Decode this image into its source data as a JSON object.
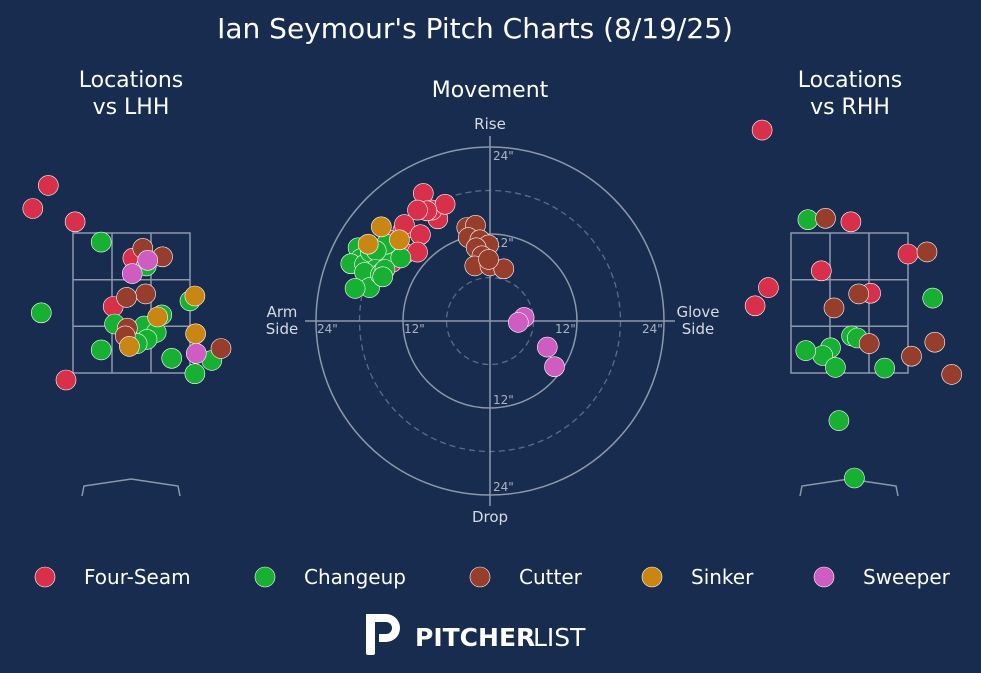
{
  "title": "Ian Seymour's Pitch Charts (8/19/25)",
  "panels": {
    "lhh_title_1": "Locations",
    "lhh_title_2": "vs LHH",
    "movement_title": "Movement",
    "rhh_title_1": "Locations",
    "rhh_title_2": "vs RHH"
  },
  "movement_axes": {
    "top": "Rise",
    "bottom": "Drop",
    "left_1": "Arm",
    "left_2": "Side",
    "right_1": "Glove",
    "right_2": "Side",
    "ring_labels": [
      "12\"",
      "24\""
    ]
  },
  "brand": {
    "bold": "PITCHER",
    "light": "LIST"
  },
  "colors": {
    "background": "#172c4e",
    "Four-Seam": "#d8304a",
    "Changeup": "#18b033",
    "Cutter": "#963d2c",
    "Sinker": "#c98613",
    "Sweeper": "#cf5cc0"
  },
  "chart_data": [
    {
      "type": "scatter",
      "title": "Locations vs LHH",
      "units": "feet (catcher's view, plate center = 0, ground = 0)",
      "strike_zone": {
        "x": [
          -0.83,
          0.83
        ],
        "y": [
          1.5,
          3.5
        ]
      },
      "series": [
        {
          "name": "Four-Seam",
          "points": [
            [
              -1.18,
              4.18
            ],
            [
              -1.4,
              3.85
            ],
            [
              -0.8,
              3.66
            ],
            [
              0.02,
              3.14
            ],
            [
              -0.26,
              2.45
            ],
            [
              -0.93,
              1.4
            ]
          ]
        },
        {
          "name": "Changeup",
          "points": [
            [
              0.21,
              3.03
            ],
            [
              0.83,
              2.53
            ],
            [
              0.43,
              2.33
            ],
            [
              -0.43,
              3.37
            ],
            [
              -1.28,
              2.36
            ],
            [
              1.14,
              1.68
            ],
            [
              -0.24,
              2.2
            ],
            [
              0.57,
              1.71
            ],
            [
              0.9,
              1.49
            ],
            [
              0.18,
              2.17
            ],
            [
              0.35,
              2.08
            ],
            [
              0.22,
              1.98
            ],
            [
              0.08,
              1.92
            ],
            [
              -0.43,
              1.83
            ]
          ]
        },
        {
          "name": "Cutter",
          "points": [
            [
              0.16,
              3.28
            ],
            [
              0.44,
              3.16
            ],
            [
              0.2,
              2.63
            ],
            [
              -0.07,
              2.58
            ],
            [
              -0.06,
              2.14
            ],
            [
              -0.09,
              2.03
            ],
            [
              1.27,
              1.85
            ]
          ]
        },
        {
          "name": "Sinker",
          "points": [
            [
              0.9,
              2.6
            ],
            [
              0.37,
              2.3
            ],
            [
              0.91,
              2.06
            ],
            [
              -0.03,
              1.88
            ]
          ]
        },
        {
          "name": "Sweeper",
          "points": [
            [
              0.23,
              3.11
            ],
            [
              0.01,
              2.92
            ],
            [
              0.92,
              1.78
            ]
          ]
        }
      ]
    },
    {
      "type": "scatter",
      "title": "Movement",
      "units": "inches (horizontal: arm side negative / glove side positive; vertical: rise positive)",
      "ring_radii": [
        6,
        12,
        18,
        24
      ],
      "series": [
        {
          "name": "Four-Seam",
          "points": [
            [
              -9.2,
              17.6
            ],
            [
              -7.2,
              14.1
            ],
            [
              -8,
              15.3
            ],
            [
              -6.2,
              16.1
            ],
            [
              -8.7,
              15.2
            ],
            [
              -10,
              15.3
            ],
            [
              -12,
              12.5
            ],
            [
              -11.8,
              13.3
            ],
            [
              -14,
              11.2
            ],
            [
              -13,
              9.5
            ],
            [
              -9.6,
              11.9
            ],
            [
              -13.6,
              10.2
            ],
            [
              -11.7,
              9.3
            ],
            [
              -13.5,
              8.1
            ],
            [
              -10,
              9.5
            ]
          ]
        },
        {
          "name": "Changeup",
          "points": [
            [
              -18.2,
              10.1
            ],
            [
              -17.8,
              8.6
            ],
            [
              -19.2,
              7.9
            ],
            [
              -17.3,
              7.8
            ],
            [
              -14.4,
              8.5
            ],
            [
              -12.3,
              8.7
            ],
            [
              -16.5,
              9.5
            ],
            [
              -14.3,
              10.6
            ],
            [
              -15.7,
              9.7
            ],
            [
              -15.8,
              7.1
            ],
            [
              -17.3,
              6.7
            ],
            [
              -16.6,
              4.6
            ],
            [
              -18.6,
              4.5
            ],
            [
              -14.9,
              6.7
            ],
            [
              -15.1,
              6.4
            ],
            [
              -14.5,
              7.1
            ],
            [
              -14.8,
              6.1
            ]
          ]
        },
        {
          "name": "Cutter",
          "points": [
            [
              -3.2,
              12.9
            ],
            [
              -2,
              13.2
            ],
            [
              -3,
              11.5
            ],
            [
              -1.4,
              11.2
            ],
            [
              -0.2,
              10.5
            ],
            [
              -1.9,
              10.1
            ],
            [
              -1.1,
              9
            ],
            [
              -2.1,
              7.6
            ],
            [
              0,
              7.6
            ],
            [
              1.9,
              7.2
            ],
            [
              -0.2,
              8.5
            ]
          ]
        },
        {
          "name": "Sinker",
          "points": [
            [
              -15,
              13
            ],
            [
              -16.8,
              10.6
            ],
            [
              -12.5,
              11.2
            ]
          ]
        },
        {
          "name": "Sweeper",
          "points": [
            [
              4.7,
              0.5
            ],
            [
              3.9,
              -0.2
            ],
            [
              7.9,
              -3.6
            ],
            [
              8.9,
              -6.3
            ]
          ]
        }
      ]
    },
    {
      "type": "scatter",
      "title": "Locations vs RHH",
      "units": "feet (catcher's view, plate center = 0, ground = 0)",
      "strike_zone": {
        "x": [
          -0.83,
          0.83
        ],
        "y": [
          1.5,
          3.5
        ]
      },
      "series": [
        {
          "name": "Four-Seam",
          "points": [
            [
              -1.24,
              4.97
            ],
            [
              0.02,
              3.66
            ],
            [
              0.83,
              3.2
            ],
            [
              -0.4,
              2.96
            ],
            [
              0.3,
              2.64
            ],
            [
              -1.15,
              2.72
            ],
            [
              -1.34,
              2.46
            ]
          ]
        },
        {
          "name": "Changeup",
          "points": [
            [
              -0.59,
              3.69
            ],
            [
              1.18,
              2.57
            ],
            [
              0.03,
              2.03
            ],
            [
              0.11,
              2
            ],
            [
              -0.27,
              1.86
            ],
            [
              -0.38,
              1.75
            ],
            [
              -0.2,
              1.58
            ],
            [
              0.5,
              1.57
            ],
            [
              -0.15,
              0.82
            ],
            [
              0.07,
              0
            ],
            [
              -0.62,
              1.82
            ]
          ]
        },
        {
          "name": "Cutter",
          "points": [
            [
              -0.34,
              3.71
            ],
            [
              1.1,
              3.23
            ],
            [
              0.13,
              2.63
            ],
            [
              -0.22,
              2.43
            ],
            [
              0.28,
              1.92
            ],
            [
              0.88,
              1.74
            ],
            [
              1.21,
              1.94
            ],
            [
              1.45,
              1.48
            ]
          ]
        },
        {
          "name": "Sinker",
          "points": []
        },
        {
          "name": "Sweeper",
          "points": []
        }
      ]
    }
  ],
  "legend": [
    {
      "label": "Four-Seam",
      "color": "#d8304a"
    },
    {
      "label": "Changeup",
      "color": "#18b033"
    },
    {
      "label": "Cutter",
      "color": "#963d2c"
    },
    {
      "label": "Sinker",
      "color": "#c98613"
    },
    {
      "label": "Sweeper",
      "color": "#cf5cc0"
    }
  ]
}
